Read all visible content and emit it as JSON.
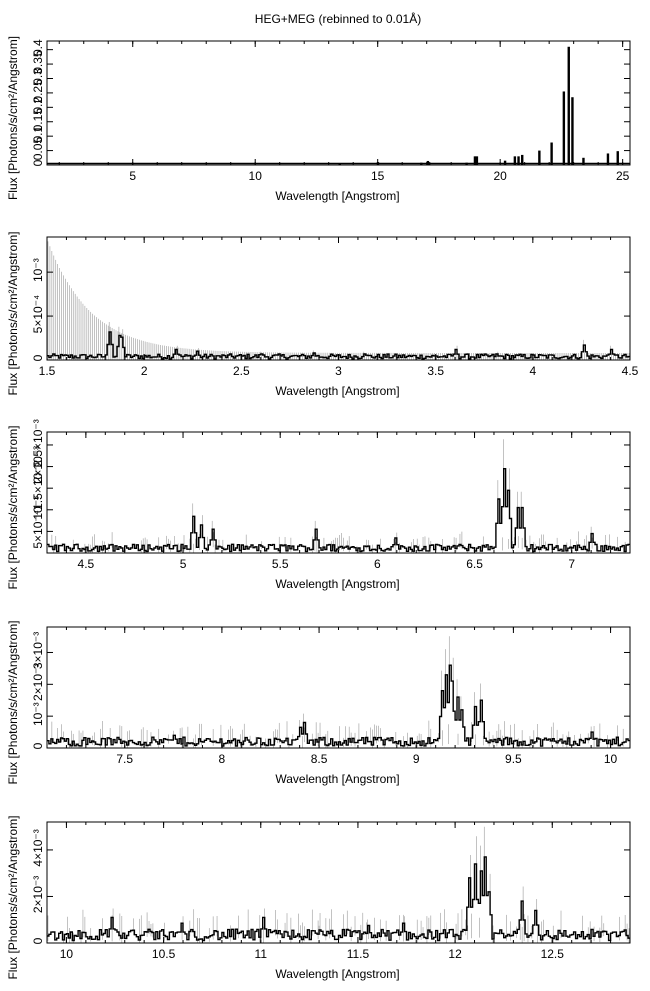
{
  "title": "HEG+MEG (rebinned to 0.01Å)",
  "chart_data": [
    {
      "type": "line",
      "xlabel": "Wavelength [Angstrom]",
      "ylabel": "Flux [Photons/s/cm²/Angstrom]",
      "xlim": [
        1.5,
        25.3
      ],
      "ylim": [
        0,
        0.43
      ],
      "xticks": [
        5,
        10,
        15,
        20,
        25
      ],
      "yticks": [
        {
          "v": 0,
          "label": "0"
        },
        {
          "v": 0.05,
          "label": "0.05"
        },
        {
          "v": 0.1,
          "label": "0.1"
        },
        {
          "v": 0.15,
          "label": "0.15"
        },
        {
          "v": 0.2,
          "label": "0.2"
        },
        {
          "v": 0.25,
          "label": "0.25"
        },
        {
          "v": 0.3,
          "label": "0.3"
        },
        {
          "v": 0.35,
          "label": "0.35"
        },
        {
          "v": 0.4,
          "label": "0.4"
        }
      ],
      "lines": [
        {
          "x": 13.45,
          "y": 0.006
        },
        {
          "x": 15.01,
          "y": 0.01
        },
        {
          "x": 16.78,
          "y": 0.008
        },
        {
          "x": 17.05,
          "y": 0.014
        },
        {
          "x": 17.1,
          "y": 0.01
        },
        {
          "x": 18.63,
          "y": 0.008
        },
        {
          "x": 18.97,
          "y": 0.03
        },
        {
          "x": 19.05,
          "y": 0.03
        },
        {
          "x": 20.2,
          "y": 0.015
        },
        {
          "x": 20.6,
          "y": 0.03
        },
        {
          "x": 20.75,
          "y": 0.03
        },
        {
          "x": 20.9,
          "y": 0.035
        },
        {
          "x": 21.6,
          "y": 0.05
        },
        {
          "x": 22.1,
          "y": 0.078
        },
        {
          "x": 22.6,
          "y": 0.255
        },
        {
          "x": 22.8,
          "y": 0.41
        },
        {
          "x": 22.95,
          "y": 0.235
        },
        {
          "x": 23.4,
          "y": 0.025
        },
        {
          "x": 24.4,
          "y": 0.04
        },
        {
          "x": 24.8,
          "y": 0.048
        }
      ]
    },
    {
      "type": "line",
      "xlabel": "Wavelength [Angstrom]",
      "ylabel": "Flux [Photons/s/cm²/Angstrom]",
      "xlim": [
        1.5,
        4.5
      ],
      "ylim": [
        0,
        0.0014
      ],
      "xticks": [
        1.5,
        2,
        2.5,
        3,
        3.5,
        4,
        4.5
      ],
      "yticks": [
        {
          "v": 0,
          "label": "0"
        },
        {
          "v": 0.0005,
          "label": "5×10⁻⁴"
        },
        {
          "v": 0.001,
          "label": "10⁻³"
        }
      ],
      "lines": [
        {
          "x": 1.82,
          "y": 0.00032
        },
        {
          "x": 1.87,
          "y": 0.00028
        },
        {
          "x": 1.89,
          "y": 0.00026
        },
        {
          "x": 2.17,
          "y": 0.00012
        },
        {
          "x": 2.28,
          "y": 0.0001
        },
        {
          "x": 2.6,
          "y": 7e-05
        },
        {
          "x": 2.87,
          "y": 8e-05
        },
        {
          "x": 3.13,
          "y": 7e-05
        },
        {
          "x": 3.61,
          "y": 0.00012
        },
        {
          "x": 3.82,
          "y": 7e-05
        },
        {
          "x": 4.26,
          "y": 0.00017
        },
        {
          "x": 4.4,
          "y": 0.00012
        }
      ]
    },
    {
      "type": "line",
      "xlabel": "Wavelength [Angstrom]",
      "ylabel": "Flux [Photons/s/cm²/Angstrom]",
      "xlim": [
        4.3,
        7.3
      ],
      "ylim": [
        0,
        0.0028
      ],
      "xticks": [
        4.5,
        5,
        5.5,
        6,
        6.5,
        7
      ],
      "yticks": [
        {
          "v": 0.0005,
          "label": "5×10⁻⁴"
        },
        {
          "v": 0.001,
          "label": "10⁻³"
        },
        {
          "v": 0.0015,
          "label": "1.5×10⁻³"
        },
        {
          "v": 0.002,
          "label": "2×10⁻³"
        },
        {
          "v": 0.0025,
          "label": "2.5×10⁻³"
        }
      ],
      "peaks": [
        {
          "x": 5.05,
          "y": 0.00085
        },
        {
          "x": 5.1,
          "y": 0.00065
        },
        {
          "x": 5.15,
          "y": 0.00055
        },
        {
          "x": 5.68,
          "y": 0.00055
        },
        {
          "x": 6.1,
          "y": 0.00035
        },
        {
          "x": 6.62,
          "y": 0.00125
        },
        {
          "x": 6.65,
          "y": 0.00195
        },
        {
          "x": 6.68,
          "y": 0.00145
        },
        {
          "x": 6.72,
          "y": 0.00105
        },
        {
          "x": 6.74,
          "y": 0.00105
        },
        {
          "x": 7.1,
          "y": 0.00045
        }
      ]
    },
    {
      "type": "line",
      "xlabel": "Wavelength [Angstrom]",
      "ylabel": "Flux [Photons/s/cm²/Angstrom]",
      "xlim": [
        7.1,
        10.1
      ],
      "ylim": [
        0,
        0.0038
      ],
      "xticks": [
        7.5,
        8,
        8.5,
        9,
        9.5,
        10
      ],
      "yticks": [
        {
          "v": 0,
          "label": "0"
        },
        {
          "v": 0.001,
          "label": "10⁻³"
        },
        {
          "v": 0.002,
          "label": "2×10⁻³"
        },
        {
          "v": 0.003,
          "label": "3×10⁻³"
        }
      ],
      "peaks": [
        {
          "x": 7.75,
          "y": 0.0004
        },
        {
          "x": 8.4,
          "y": 0.00065
        },
        {
          "x": 8.42,
          "y": 0.0008
        },
        {
          "x": 9.13,
          "y": 0.0018
        },
        {
          "x": 9.15,
          "y": 0.0023
        },
        {
          "x": 9.17,
          "y": 0.0026
        },
        {
          "x": 9.19,
          "y": 0.0021
        },
        {
          "x": 9.21,
          "y": 0.0016
        },
        {
          "x": 9.23,
          "y": 0.0012
        },
        {
          "x": 9.3,
          "y": 0.0013
        },
        {
          "x": 9.33,
          "y": 0.0015
        },
        {
          "x": 9.9,
          "y": 0.0005
        }
      ]
    },
    {
      "type": "line",
      "xlabel": "Wavelength [Angstrom]",
      "ylabel": "Flux [Photons/s/cm²/Angstrom]",
      "xlim": [
        9.9,
        12.9
      ],
      "ylim": [
        0,
        0.0052
      ],
      "xticks": [
        10,
        10.5,
        11,
        11.5,
        12,
        12.5
      ],
      "yticks": [
        {
          "v": 0,
          "label": "0"
        },
        {
          "v": 0.002,
          "label": "2×10⁻³"
        },
        {
          "v": 0.004,
          "label": "4×10⁻³"
        }
      ],
      "peaks": [
        {
          "x": 10.24,
          "y": 0.0011
        },
        {
          "x": 10.6,
          "y": 0.00085
        },
        {
          "x": 11.02,
          "y": 0.0011
        },
        {
          "x": 11.3,
          "y": 0.00055
        },
        {
          "x": 11.55,
          "y": 0.00075
        },
        {
          "x": 11.74,
          "y": 0.00085
        },
        {
          "x": 12.08,
          "y": 0.0028
        },
        {
          "x": 12.11,
          "y": 0.0034
        },
        {
          "x": 12.13,
          "y": 0.0031
        },
        {
          "x": 12.15,
          "y": 0.0037
        },
        {
          "x": 12.18,
          "y": 0.0022
        },
        {
          "x": 12.35,
          "y": 0.0018
        },
        {
          "x": 12.42,
          "y": 0.0014
        }
      ]
    }
  ]
}
